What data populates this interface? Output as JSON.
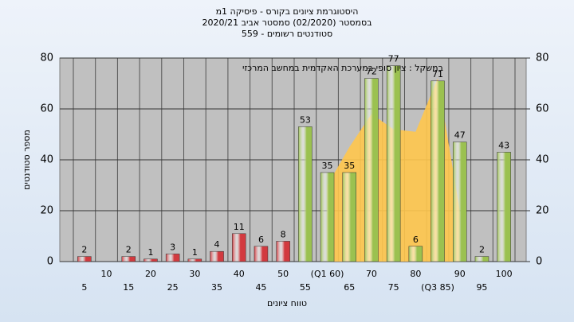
{
  "chart_data": {
    "type": "bar",
    "title": "היסטוגרמת ציונים בקורס - פיסיקה 1מ",
    "subtitle": "בסמסטר (02/2020) סמסטר אביב 2020/21",
    "subtitle2": "סטודנטים רשומים - 559",
    "annotation": "במשקל : ציון סופי במערכת האקדמית במחשב המרכזי",
    "x_label": "טווח ציונים",
    "y_label": "מספר סטודנטים",
    "categories": [
      "5",
      "10",
      "15",
      "20",
      "25",
      "30",
      "35",
      "40",
      "45",
      "50",
      "55",
      "(Q1 60)",
      "65",
      "70",
      "75",
      "80",
      "(Q3 85)",
      "90",
      "95",
      "100"
    ],
    "series": [
      {
        "type": "area",
        "color": "#ffc64d",
        "values": [
          null,
          null,
          null,
          null,
          null,
          null,
          null,
          null,
          null,
          null,
          null,
          30,
          45,
          58,
          52,
          51,
          72,
          20,
          null,
          null
        ]
      },
      {
        "type": "bar",
        "color": "#d23a3f",
        "values": [
          2,
          0,
          2,
          1,
          3,
          1,
          4,
          11,
          6,
          8,
          null,
          null,
          null,
          null,
          null,
          null,
          null,
          null,
          null,
          null
        ]
      },
      {
        "type": "bar",
        "color": "#9bc150",
        "values": [
          null,
          null,
          null,
          null,
          null,
          null,
          null,
          null,
          null,
          null,
          53,
          35,
          35,
          72,
          77,
          6,
          71,
          47,
          2,
          43
        ]
      }
    ],
    "ylim": [
      0,
      80
    ],
    "yticks": [
      0,
      20,
      40,
      60,
      80
    ],
    "y2lim": [
      0,
      80
    ],
    "y2ticks": [
      0,
      20,
      40,
      60,
      80
    ],
    "grid": true
  }
}
